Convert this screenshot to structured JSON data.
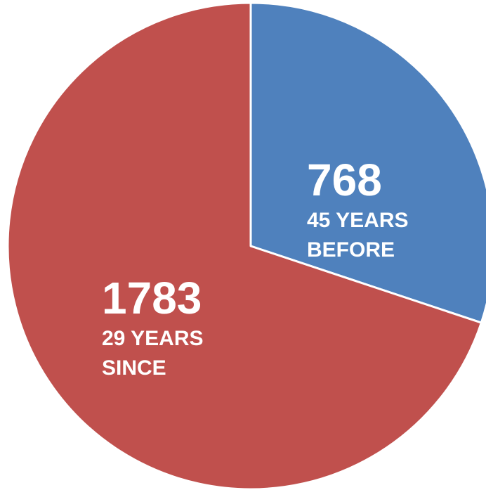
{
  "chart_data": {
    "type": "pie",
    "values": [
      768,
      1783
    ],
    "labels": [
      [
        "45 YEARS",
        "BEFORE"
      ],
      [
        "29 YEARS",
        "SINCE"
      ]
    ],
    "colors": [
      "#4f81bd",
      "#c0504d"
    ]
  }
}
